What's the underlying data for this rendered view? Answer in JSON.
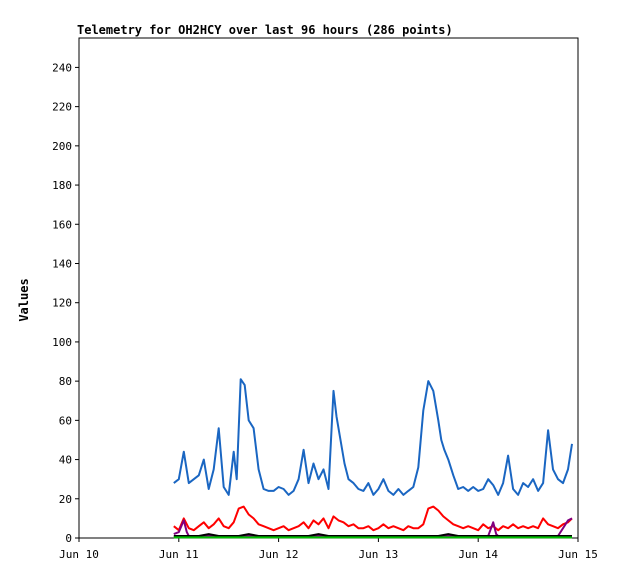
{
  "chart_data": {
    "type": "line",
    "title": "Telemetry for OH2HCY over last 96 hours (286 points)",
    "xlabel": "",
    "ylabel": "Values",
    "ylim": [
      0,
      255
    ],
    "yticks": [
      0,
      20,
      40,
      60,
      80,
      100,
      120,
      140,
      160,
      180,
      200,
      220,
      240
    ],
    "xticks": [
      "Jun 10",
      "Jun 11",
      "Jun 12",
      "Jun 13",
      "Jun 14",
      "Jun 15"
    ],
    "xlim_days": [
      10,
      15
    ],
    "grid": false,
    "series": [
      {
        "color": "#1a66c2",
        "x": [
          10.95,
          11.0,
          11.05,
          11.1,
          11.15,
          11.2,
          11.25,
          11.3,
          11.35,
          11.4,
          11.45,
          11.5,
          11.55,
          11.58,
          11.62,
          11.66,
          11.7,
          11.75,
          11.8,
          11.85,
          11.9,
          11.95,
          12.0,
          12.05,
          12.1,
          12.15,
          12.2,
          12.25,
          12.3,
          12.35,
          12.4,
          12.45,
          12.5,
          12.55,
          12.58,
          12.62,
          12.66,
          12.7,
          12.75,
          12.8,
          12.85,
          12.9,
          12.95,
          13.0,
          13.05,
          13.1,
          13.15,
          13.2,
          13.25,
          13.3,
          13.35,
          13.4,
          13.45,
          13.5,
          13.55,
          13.6,
          13.63,
          13.66,
          13.7,
          13.75,
          13.8,
          13.85,
          13.9,
          13.95,
          14.0,
          14.05,
          14.1,
          14.15,
          14.2,
          14.25,
          14.3,
          14.35,
          14.4,
          14.45,
          14.5,
          14.55,
          14.6,
          14.65,
          14.7,
          14.75,
          14.8,
          14.85,
          14.9,
          14.94
        ],
        "y": [
          28,
          30,
          44,
          28,
          30,
          32,
          40,
          25,
          35,
          56,
          26,
          22,
          44,
          30,
          81,
          78,
          60,
          56,
          35,
          25,
          24,
          24,
          26,
          25,
          22,
          24,
          30,
          45,
          28,
          38,
          30,
          35,
          25,
          75,
          62,
          50,
          38,
          30,
          28,
          25,
          24,
          28,
          22,
          25,
          30,
          24,
          22,
          25,
          22,
          24,
          26,
          36,
          65,
          80,
          75,
          60,
          50,
          45,
          40,
          32,
          25,
          26,
          24,
          26,
          24,
          25,
          30,
          27,
          22,
          28,
          42,
          25,
          22,
          28,
          26,
          30,
          24,
          28,
          55,
          35,
          30,
          28,
          35,
          48
        ]
      },
      {
        "color": "#ff0000",
        "x": [
          10.95,
          11.0,
          11.05,
          11.1,
          11.15,
          11.2,
          11.25,
          11.3,
          11.35,
          11.4,
          11.45,
          11.5,
          11.55,
          11.6,
          11.65,
          11.7,
          11.75,
          11.8,
          11.85,
          11.9,
          11.95,
          12.0,
          12.05,
          12.1,
          12.15,
          12.2,
          12.25,
          12.3,
          12.35,
          12.4,
          12.45,
          12.5,
          12.55,
          12.6,
          12.65,
          12.7,
          12.75,
          12.8,
          12.85,
          12.9,
          12.95,
          13.0,
          13.05,
          13.1,
          13.15,
          13.2,
          13.25,
          13.3,
          13.35,
          13.4,
          13.45,
          13.5,
          13.55,
          13.6,
          13.65,
          13.7,
          13.75,
          13.8,
          13.85,
          13.9,
          13.95,
          14.0,
          14.05,
          14.1,
          14.15,
          14.2,
          14.25,
          14.3,
          14.35,
          14.4,
          14.45,
          14.5,
          14.55,
          14.6,
          14.65,
          14.7,
          14.75,
          14.8,
          14.85,
          14.9,
          14.94
        ],
        "y": [
          6,
          4,
          10,
          5,
          4,
          6,
          8,
          5,
          7,
          10,
          6,
          5,
          8,
          15,
          16,
          12,
          10,
          7,
          6,
          5,
          4,
          5,
          6,
          4,
          5,
          6,
          8,
          5,
          9,
          7,
          10,
          5,
          11,
          9,
          8,
          6,
          7,
          5,
          5,
          6,
          4,
          5,
          7,
          5,
          6,
          5,
          4,
          6,
          5,
          5,
          7,
          15,
          16,
          14,
          11,
          9,
          7,
          6,
          5,
          6,
          5,
          4,
          7,
          5,
          6,
          4,
          6,
          5,
          7,
          5,
          6,
          5,
          6,
          5,
          10,
          7,
          6,
          5,
          7,
          8,
          10
        ]
      },
      {
        "color": "#800080",
        "x": [
          10.95,
          11.0,
          11.05,
          11.08,
          11.1,
          11.15,
          11.5,
          11.55,
          12.0,
          12.5,
          13.0,
          13.5,
          14.0,
          14.1,
          14.15,
          14.18,
          14.2,
          14.5,
          14.8,
          14.9,
          14.94
        ],
        "y": [
          2,
          3,
          9,
          3,
          1,
          1,
          1,
          1,
          1,
          1,
          1,
          1,
          1,
          1,
          8,
          2,
          1,
          1,
          1,
          9,
          10
        ]
      },
      {
        "color": "#000000",
        "x": [
          10.95,
          11.1,
          11.2,
          11.3,
          11.4,
          11.5,
          11.6,
          11.7,
          11.8,
          11.9,
          12.0,
          12.1,
          12.2,
          12.3,
          12.4,
          12.5,
          12.6,
          12.7,
          12.8,
          12.9,
          13.0,
          13.1,
          13.2,
          13.3,
          13.4,
          13.5,
          13.6,
          13.7,
          13.8,
          13.9,
          14.0,
          14.1,
          14.2,
          14.3,
          14.4,
          14.5,
          14.6,
          14.7,
          14.8,
          14.9,
          14.94
        ],
        "y": [
          1,
          1,
          1,
          2,
          1,
          1,
          1,
          2,
          1,
          1,
          1,
          1,
          1,
          1,
          2,
          1,
          1,
          1,
          1,
          1,
          1,
          1,
          1,
          1,
          1,
          1,
          1,
          2,
          1,
          1,
          1,
          1,
          1,
          1,
          1,
          1,
          1,
          1,
          1,
          1,
          1
        ]
      },
      {
        "color": "#00c000",
        "x": [
          10.95,
          14.94
        ],
        "y": [
          0.3,
          0.3
        ]
      }
    ]
  }
}
